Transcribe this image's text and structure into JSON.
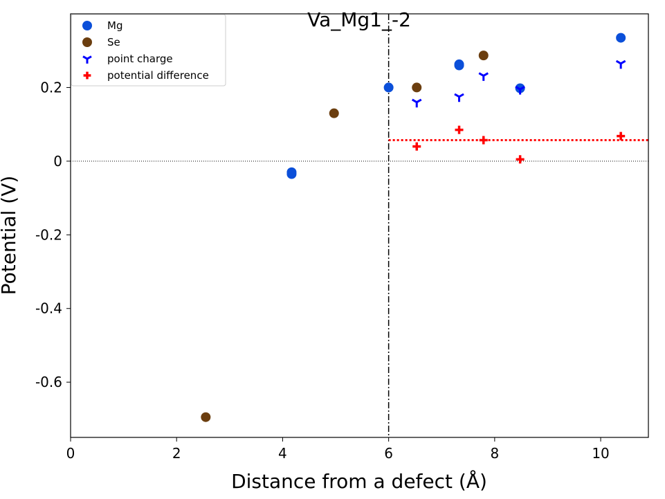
{
  "chart_data": {
    "type": "scatter",
    "title": "Va_Mg1_-2",
    "xlabel": "Distance from a defect (Å)",
    "ylabel": "Potential (V)",
    "xlim": [
      0,
      10.9
    ],
    "ylim": [
      -0.75,
      0.4
    ],
    "x_ticks": [
      0,
      2,
      4,
      6,
      8,
      10
    ],
    "x_tick_labels": [
      "0",
      "2",
      "4",
      "6",
      "8",
      "10"
    ],
    "y_ticks": [
      0.2,
      0,
      -0.2,
      -0.4,
      -0.6
    ],
    "y_tick_labels": [
      "0.2",
      "0",
      "-0.2",
      "-0.4",
      "-0.6"
    ],
    "grid": false,
    "legend_position": "top-left",
    "series": [
      {
        "name": "Mg",
        "marker": "circle",
        "color": "#0b4fd9",
        "points": [
          [
            4.17,
            -0.035
          ],
          [
            4.17,
            -0.03
          ],
          [
            6.0,
            0.2
          ],
          [
            7.33,
            0.26
          ],
          [
            7.33,
            0.263
          ],
          [
            8.48,
            0.198
          ],
          [
            10.38,
            0.335
          ]
        ]
      },
      {
        "name": "Se",
        "marker": "circle",
        "color": "#6b3e0f",
        "points": [
          [
            2.55,
            -0.695
          ],
          [
            4.97,
            0.13
          ],
          [
            6.53,
            0.2
          ],
          [
            7.79,
            0.287
          ]
        ]
      },
      {
        "name": "point charge",
        "marker": "tri_down",
        "color": "#0000ff",
        "points": [
          [
            6.53,
            0.16
          ],
          [
            7.33,
            0.175
          ],
          [
            7.79,
            0.232
          ],
          [
            8.48,
            0.195
          ],
          [
            10.38,
            0.265
          ]
        ]
      },
      {
        "name": "potential difference",
        "marker": "plus",
        "color": "#ff0000",
        "points": [
          [
            6.53,
            0.04
          ],
          [
            7.33,
            0.085
          ],
          [
            7.79,
            0.057
          ],
          [
            8.48,
            0.005
          ],
          [
            10.38,
            0.068
          ]
        ]
      }
    ],
    "reference_lines": {
      "zero_line": {
        "y": 0,
        "style": "dotted",
        "color": "#000000"
      },
      "sampling_radius": {
        "x": 6.0,
        "style": "dashdot",
        "color": "#000000"
      },
      "average_difference": {
        "y": 0.057,
        "x_start": 6.0,
        "style": "dotted",
        "color": "#ff0000"
      }
    }
  }
}
